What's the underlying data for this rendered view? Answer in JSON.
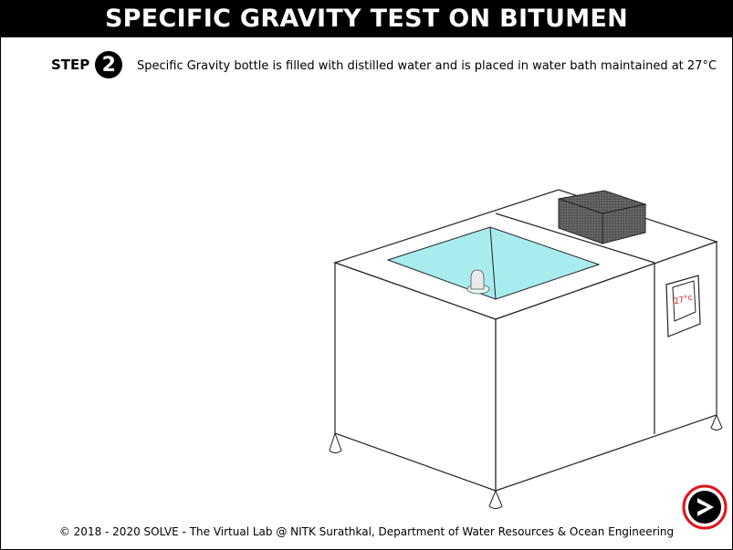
{
  "header": {
    "title": "SPECIFIC GRAVITY TEST ON BITUMEN"
  },
  "step": {
    "label": "STEP",
    "number": "2",
    "text": "Specific Gravity bottle is filled with distilled water and is placed in water bath maintained at 27°C"
  },
  "display": {
    "reading": "27°c"
  },
  "footer": {
    "text": "© 2018 - 2020 SOLVE - The Virtual Lab @ NITK Surathkal, Department of Water Resources & Ocean Engineering"
  },
  "colors": {
    "water": "#a8eced",
    "title_bg": "#000000",
    "next_ring": "#e0141c",
    "display_text": "#e0141c"
  },
  "icons": {
    "next": "next-arrow-icon"
  }
}
